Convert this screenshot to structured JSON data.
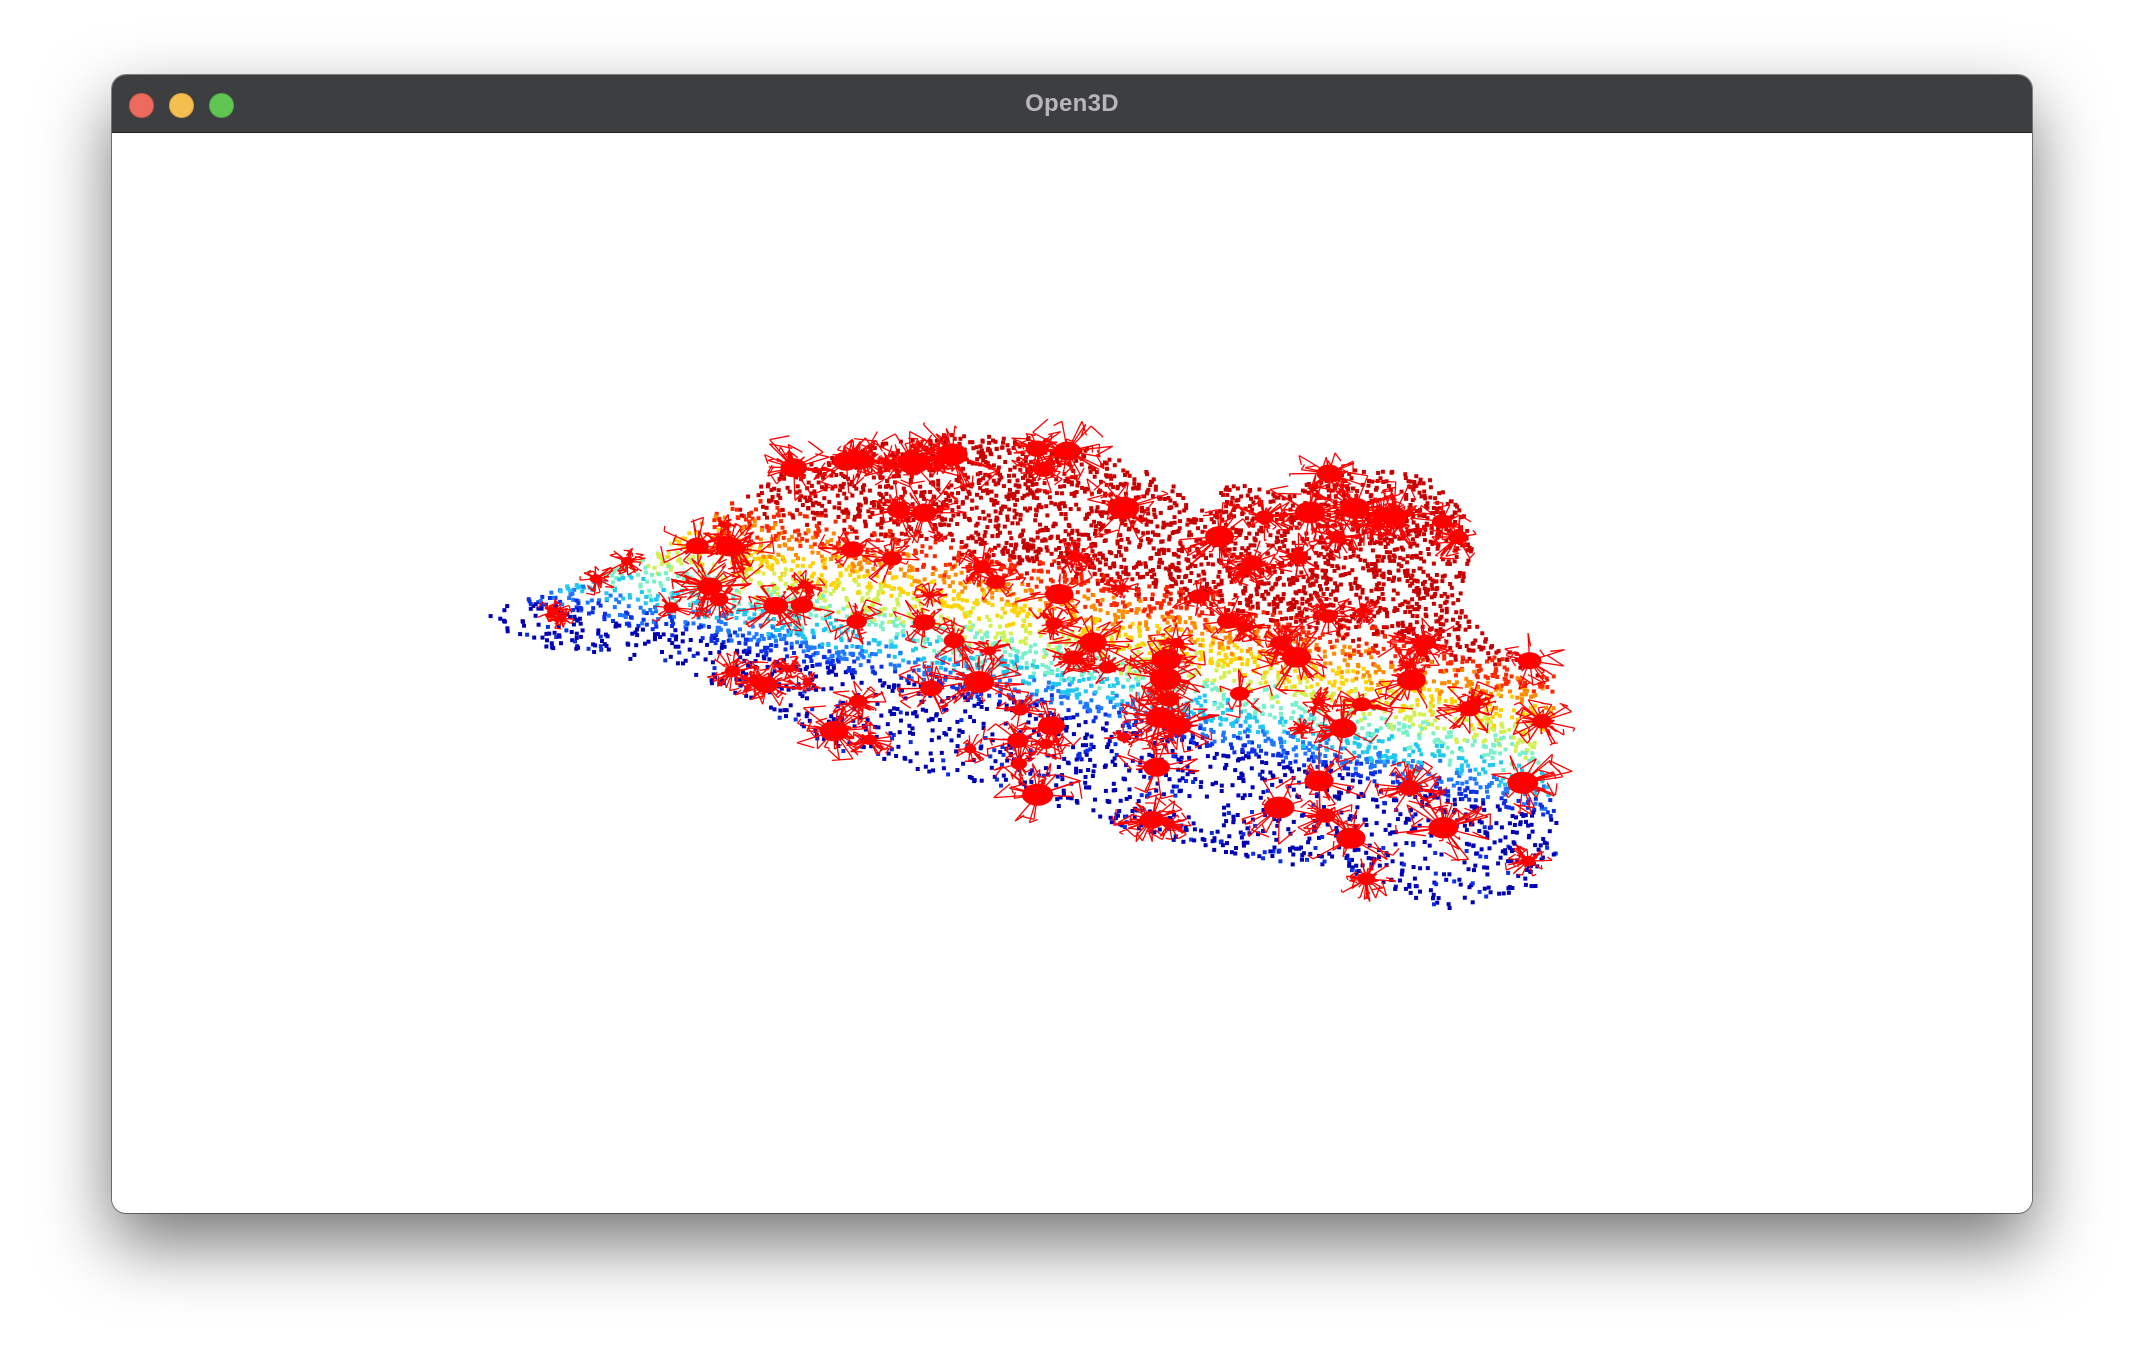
{
  "window": {
    "title": "Open3D"
  },
  "viewport": {
    "background": "#ffffff",
    "content": "point-cloud"
  },
  "colors": {
    "titlebar": "#3d3e40",
    "title_text": "#b7b7b9",
    "close": "#ed6a5e",
    "minimize": "#f5bf4f",
    "zoom": "#61c554",
    "correspondence_lines": "#ff0000",
    "colormap": [
      "#0000b4",
      "#0a2fe6",
      "#1e78ff",
      "#1ec8f0",
      "#78f0c8",
      "#d2f050",
      "#ffd200",
      "#ff8c00",
      "#ff2800",
      "#c80000"
    ]
  },
  "icons": {
    "close": "close-icon",
    "minimize": "minimize-icon",
    "zoom": "zoom-icon"
  }
}
